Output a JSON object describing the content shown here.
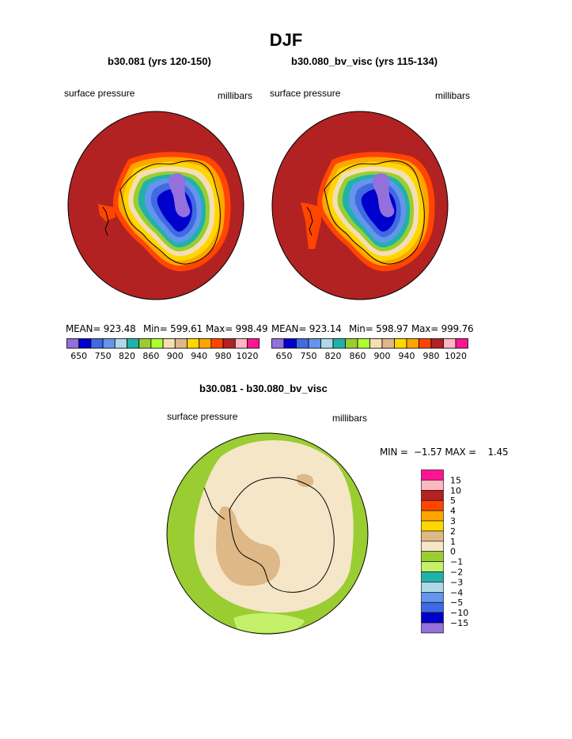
{
  "page": {
    "title": "DJF"
  },
  "chart_data": [
    {
      "type": "heatmap",
      "title": "b30.081 (yrs 120-150)",
      "left_label": "surface pressure",
      "right_label": "millibars",
      "stats": {
        "mean": "MEAN= 923.48",
        "min": "Min= 599.61",
        "max": "Max= 998.49"
      },
      "colorbar": {
        "orientation": "horizontal",
        "colors": [
          "#9370db",
          "#0000cd",
          "#4169e1",
          "#6495ed",
          "#add8e6",
          "#20b2aa",
          "#9acd32",
          "#adff2f",
          "#f5deb3",
          "#deb887",
          "#ffd700",
          "#ffa500",
          "#ff4500",
          "#b22222",
          "#ffb6c1",
          "#ff1493"
        ],
        "tick_labels": [
          "650",
          "750",
          "820",
          "860",
          "900",
          "940",
          "980",
          "1020"
        ]
      }
    },
    {
      "type": "heatmap",
      "title": "b30.080_bv_visc (yrs 115-134)",
      "left_label": "surface pressure",
      "right_label": "millibars",
      "stats": {
        "mean": "MEAN= 923.14",
        "min": "Min= 598.97",
        "max": "Max= 999.76"
      },
      "colorbar": {
        "orientation": "horizontal",
        "colors": [
          "#9370db",
          "#0000cd",
          "#4169e1",
          "#6495ed",
          "#add8e6",
          "#20b2aa",
          "#9acd32",
          "#adff2f",
          "#f5deb3",
          "#deb887",
          "#ffd700",
          "#ffa500",
          "#ff4500",
          "#b22222",
          "#ffb6c1",
          "#ff1493"
        ],
        "tick_labels": [
          "650",
          "750",
          "820",
          "860",
          "900",
          "940",
          "980",
          "1020"
        ]
      }
    },
    {
      "type": "heatmap",
      "title": "b30.081 - b30.080_bv_visc",
      "left_label": "surface pressure",
      "right_label": "millibars",
      "stats": {
        "minmax": "MIN =  −1.57 MAX =    1.45"
      },
      "colorbar": {
        "orientation": "vertical",
        "colors_top_to_bottom": [
          "#ff1493",
          "#ffb6c1",
          "#b22222",
          "#ff4500",
          "#ffa500",
          "#ffd700",
          "#deb887",
          "#f5e6c8",
          "#9acd32",
          "#c5f06a",
          "#20b2aa",
          "#add8e6",
          "#6495ed",
          "#4169e1",
          "#0000cd",
          "#9370db"
        ],
        "tick_labels_top_to_bottom": [
          "15",
          "10",
          "5",
          "4",
          "3",
          "2",
          "1",
          "0",
          "−1",
          "−2",
          "−3",
          "−4",
          "−5",
          "−10",
          "−15"
        ]
      }
    }
  ]
}
